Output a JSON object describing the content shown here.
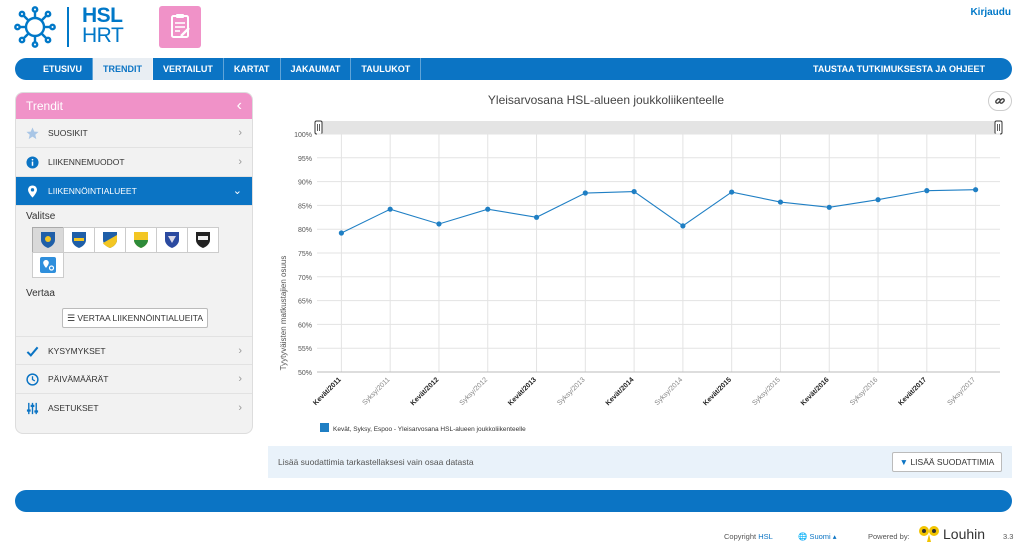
{
  "header": {
    "logo_line1": "HSL",
    "logo_line2": "HRT",
    "login": "Kirjaudu"
  },
  "nav": {
    "tabs": [
      "ETUSIVU",
      "TRENDIT",
      "VERTAILUT",
      "KARTAT",
      "JAKAUMAT",
      "TAULUKOT"
    ],
    "active": "TRENDIT",
    "right_link": "TAUSTAA TUTKIMUKSESTA JA OHJEET"
  },
  "sidebar": {
    "title": "Trendit",
    "items": [
      {
        "label": "SUOSIKIT",
        "icon": "star-icon"
      },
      {
        "label": "LIIKENNEMUODOT",
        "icon": "info-icon"
      },
      {
        "label": "LIIKENNÖINTIALUEET",
        "icon": "location-pin-icon",
        "active": true
      }
    ],
    "select_label": "Valitse",
    "compare_label": "Vertaa",
    "compare_button": "VERTAA LIIKENNÖINTIALUEITA",
    "bottom_items": [
      {
        "label": "KYSYMYKSET",
        "icon": "check-icon"
      },
      {
        "label": "PÄIVÄMÄÄRÄT",
        "icon": "clock-icon"
      },
      {
        "label": "ASETUKSET",
        "icon": "sliders-icon"
      }
    ]
  },
  "chart_data": {
    "type": "line",
    "title": "Yleisarvosana HSL-alueen joukkoliikenteelle",
    "ylabel": "Tyytyväisten matkustajien osuus",
    "xlabel": "",
    "ylim": [
      50,
      100
    ],
    "yticks": [
      "100%",
      "95%",
      "90%",
      "85%",
      "80%",
      "75%",
      "70%",
      "65%",
      "60%",
      "55%",
      "50%"
    ],
    "categories": [
      "Kevät/2011",
      "Syksy/2011",
      "Kevät/2012",
      "Syksy/2012",
      "Kevät/2013",
      "Syksy/2013",
      "Kevät/2014",
      "Syksy/2014",
      "Kevät/2015",
      "Syksy/2015",
      "Kevät/2016",
      "Syksy/2016",
      "Kevät/2017",
      "Syksy/2017"
    ],
    "series": [
      {
        "name": "Kevät, Syksy, Espoo - Yleisarvosana HSL-alueen joukkoliikenteelle",
        "color": "#1f7fc4",
        "values": [
          79.2,
          84.2,
          81.1,
          84.2,
          82.5,
          87.6,
          87.9,
          80.7,
          87.8,
          85.7,
          84.6,
          86.2,
          88.1,
          88.3
        ]
      }
    ],
    "grid": true,
    "legend": "bottom-left"
  },
  "filter": {
    "text": "Lisää suodattimia tarkastellaksesi vain osaa datasta",
    "button": "LISÄÄ SUODATTIMIA"
  },
  "footer": {
    "copyright": "Copyright",
    "copyright_link": "HSL",
    "language": "Suomi",
    "powered_by": "Powered by:",
    "brand": "Louhin",
    "version": "3.3"
  },
  "colors": {
    "primary": "#0b74c4",
    "pink": "#f092c8"
  }
}
